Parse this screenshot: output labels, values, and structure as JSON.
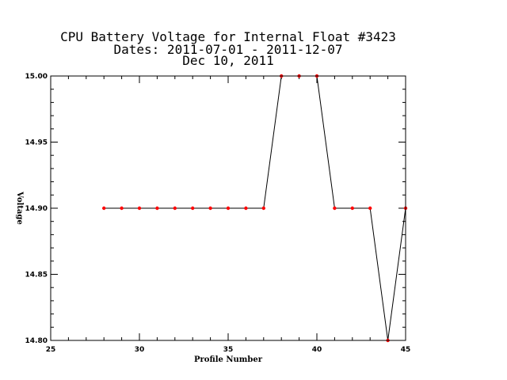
{
  "chart_data": {
    "type": "line",
    "title_lines": [
      "CPU Battery Voltage for Internal Float #3423",
      "Dates:  2011-07-01 -  2011-12-07",
      "Dec 10, 2011"
    ],
    "xlabel": "Profile Number",
    "ylabel": "Voltage",
    "xlim": [
      25,
      45
    ],
    "ylim": [
      14.8,
      15.0
    ],
    "x_ticks": [
      25,
      30,
      35,
      40,
      45
    ],
    "x_tick_labels": [
      "25",
      "30",
      "35",
      "40",
      "45"
    ],
    "y_ticks": [
      14.8,
      14.85,
      14.9,
      14.95,
      15.0
    ],
    "y_tick_labels": [
      "14.80",
      "14.85",
      "14.90",
      "14.95",
      "15.00"
    ],
    "x_minor_step": 1,
    "y_minor_step": 0.01,
    "grid": false,
    "line_color": "#000000",
    "marker_color": "#ff0000",
    "series": [
      {
        "x": [
          28,
          29,
          30,
          31,
          32,
          33,
          34,
          35,
          36,
          37,
          38,
          39,
          40,
          41,
          42,
          43,
          44,
          45
        ],
        "y": [
          14.9,
          14.9,
          14.9,
          14.9,
          14.9,
          14.9,
          14.9,
          14.9,
          14.9,
          14.9,
          15.0,
          15.0,
          15.0,
          14.9,
          14.9,
          14.9,
          14.8,
          14.9
        ]
      }
    ]
  }
}
